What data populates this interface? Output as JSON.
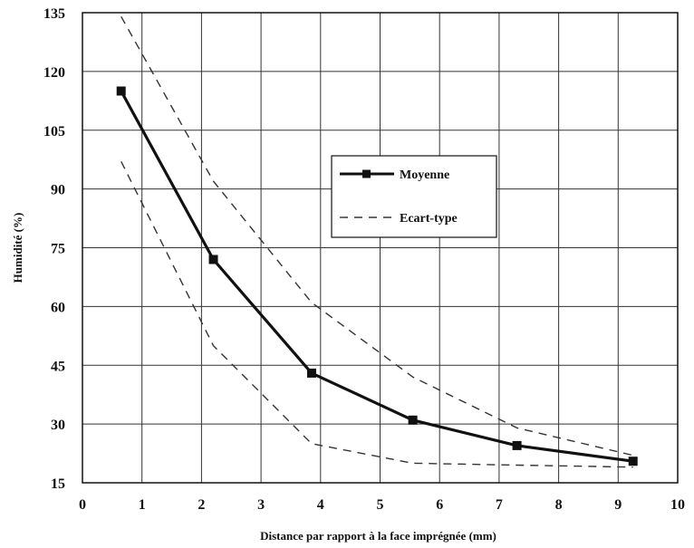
{
  "chart_data": {
    "type": "line",
    "title": "",
    "xlabel": "Distance par rapport à la face imprégnée (mm)",
    "ylabel": "Humidité (%)",
    "xlim": [
      0,
      10
    ],
    "ylim": [
      15,
      135
    ],
    "x_ticks": [
      0,
      1,
      2,
      3,
      4,
      5,
      6,
      7,
      8,
      9,
      10
    ],
    "y_ticks": [
      15,
      30,
      45,
      60,
      75,
      90,
      105,
      120,
      135
    ],
    "grid": true,
    "legend_position": "center-right",
    "series": [
      {
        "name": "Moyenne",
        "style": "solid",
        "marker": "square",
        "color": "#111111",
        "x": [
          0.65,
          2.2,
          3.85,
          5.55,
          7.3,
          9.25
        ],
        "y": [
          115,
          72,
          43,
          31,
          24.5,
          20.5
        ]
      },
      {
        "name": "Ecart-type",
        "style": "dashed",
        "color": "#333333",
        "x": [
          0.65,
          2.2,
          3.85,
          5.55,
          7.3,
          9.25
        ],
        "y": [
          134,
          92,
          61,
          42,
          29,
          22
        ]
      },
      {
        "name": "",
        "style": "dashed",
        "color": "#333333",
        "x": [
          0.65,
          2.2,
          3.85,
          5.55,
          7.3,
          9.25
        ],
        "y": [
          97,
          50,
          25,
          20,
          19.5,
          19
        ]
      }
    ]
  }
}
